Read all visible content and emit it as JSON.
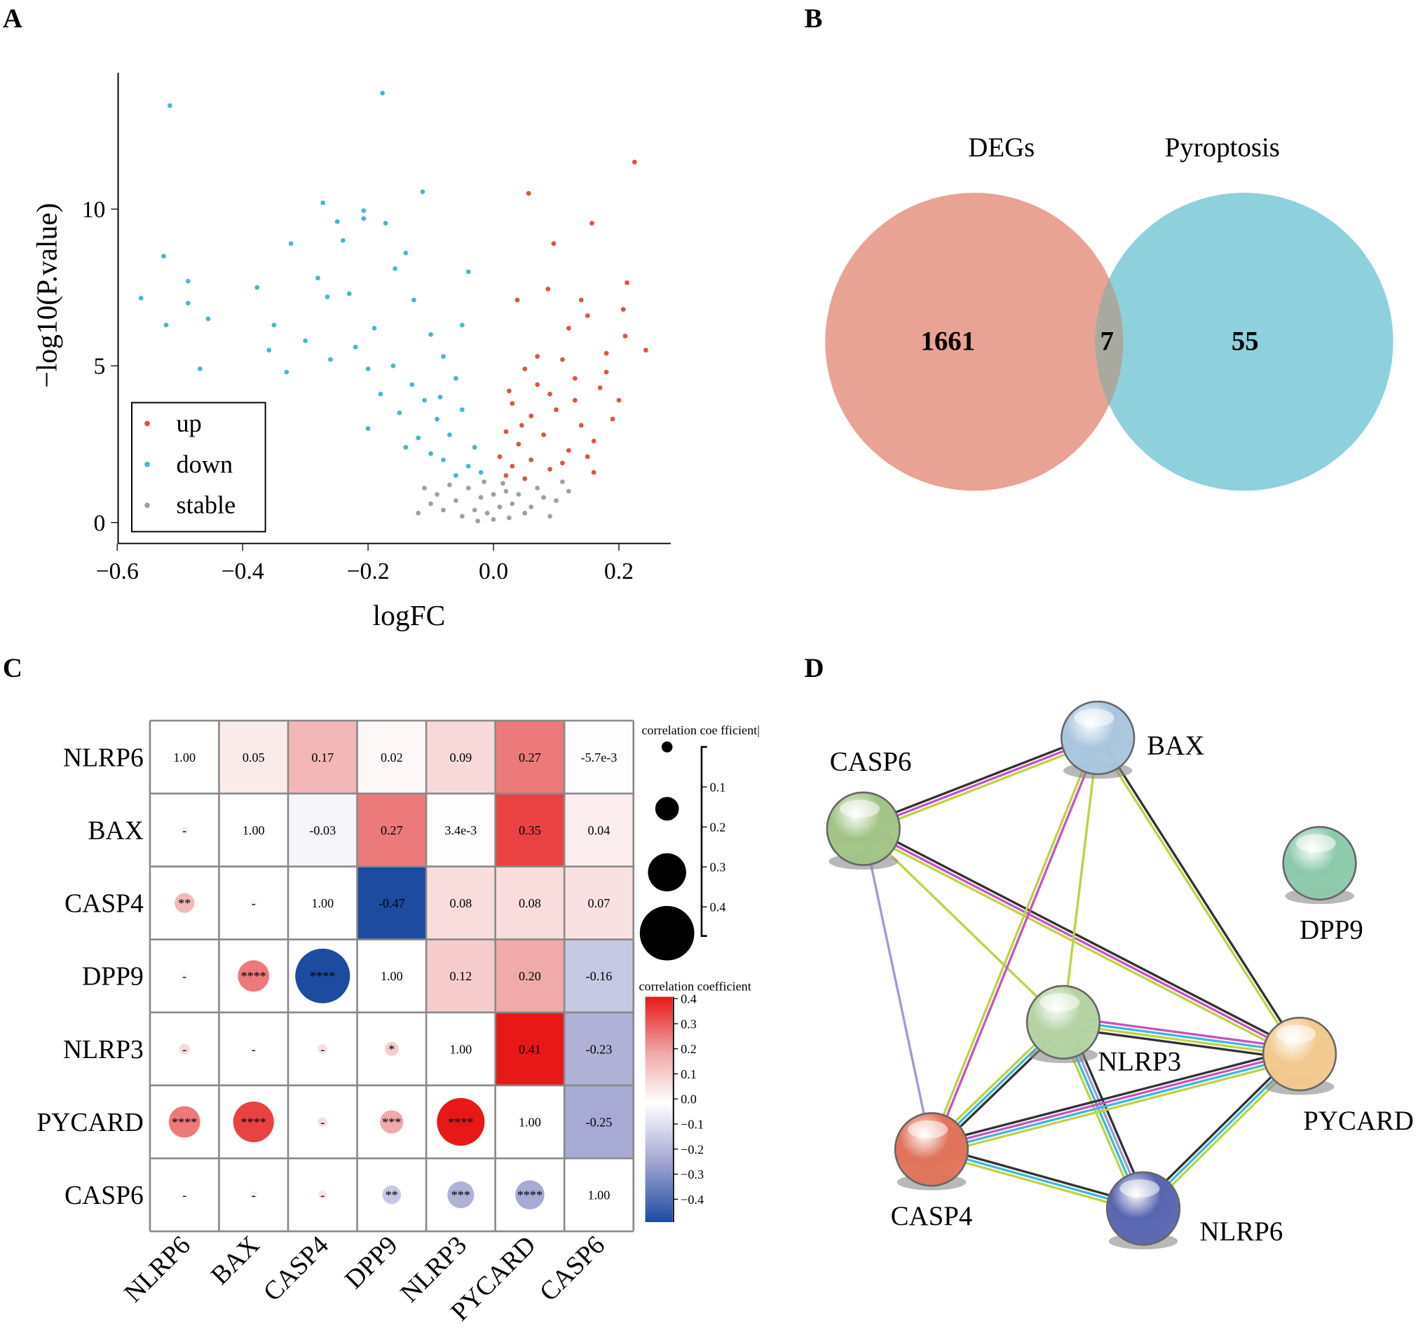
{
  "panel_labels": [
    "A",
    "B",
    "C",
    "D"
  ],
  "chart_data": [
    {
      "panel": "A",
      "type": "scatter",
      "xlabel": "logFC",
      "ylabel": "−log10(P.value)",
      "xlim": [
        -0.6,
        0.28
      ],
      "ylim": [
        0,
        14.3
      ],
      "xticks": [
        "−0.6",
        "−0.4",
        "−0.2",
        "0.0",
        "0.2"
      ],
      "xtick_values": [
        -0.6,
        -0.4,
        -0.2,
        0.0,
        0.2
      ],
      "yticks": [
        "0",
        "5",
        "10"
      ],
      "ytick_values": [
        0,
        5,
        10
      ],
      "legend": {
        "placement": "bottom-left",
        "entries": [
          "up",
          "down",
          "stable"
        ]
      },
      "colors": {
        "up": "#e0533d",
        "down": "#47b7cc",
        "stable": "#a0a0a0"
      },
      "series": [
        {
          "name": "up",
          "points": [
            [
              0.225,
              11.5
            ],
            [
              0.056,
              10.5
            ],
            [
              0.157,
              9.55
            ],
            [
              0.096,
              8.9
            ],
            [
              0.213,
              7.65
            ],
            [
              0.243,
              5.5
            ],
            [
              0.207,
              6.8
            ],
            [
              0.21,
              5.95
            ],
            [
              0.038,
              7.1
            ],
            [
              0.087,
              7.45
            ],
            [
              0.14,
              7.1
            ],
            [
              0.16,
              1.6
            ],
            [
              0.12,
              6.2
            ],
            [
              0.15,
              6.6
            ],
            [
              0.18,
              5.4
            ],
            [
              0.11,
              5.2
            ],
            [
              0.07,
              5.3
            ],
            [
              0.05,
              4.9
            ],
            [
              0.13,
              4.6
            ],
            [
              0.17,
              4.3
            ],
            [
              0.09,
              4.1
            ],
            [
              0.03,
              3.8
            ],
            [
              0.06,
              3.4
            ],
            [
              0.1,
              3.6
            ],
            [
              0.14,
              3.1
            ],
            [
              0.19,
              3.3
            ],
            [
              0.02,
              2.9
            ],
            [
              0.04,
              2.5
            ],
            [
              0.08,
              2.8
            ],
            [
              0.12,
              2.3
            ],
            [
              0.16,
              2.6
            ],
            [
              0.01,
              2.1
            ],
            [
              0.03,
              1.8
            ],
            [
              0.06,
              2.0
            ],
            [
              0.09,
              1.7
            ],
            [
              0.11,
              1.9
            ],
            [
              0.02,
              1.5
            ],
            [
              0.05,
              1.4
            ],
            [
              0.15,
              2.1
            ],
            [
              0.2,
              3.9
            ],
            [
              0.18,
              4.8
            ],
            [
              0.07,
              4.4
            ],
            [
              0.025,
              4.2
            ],
            [
              0.045,
              3.1
            ],
            [
              0.13,
              3.9
            ]
          ]
        },
        {
          "name": "down",
          "points": [
            [
              -0.516,
              13.3
            ],
            [
              -0.177,
              13.7
            ],
            [
              -0.562,
              7.16
            ],
            [
              -0.526,
              8.5
            ],
            [
              -0.487,
              7.7
            ],
            [
              -0.487,
              7.0
            ],
            [
              -0.522,
              6.3
            ],
            [
              -0.455,
              6.5
            ],
            [
              -0.468,
              4.9
            ],
            [
              -0.113,
              10.55
            ],
            [
              -0.272,
              10.2
            ],
            [
              -0.249,
              9.6
            ],
            [
              -0.207,
              9.7
            ],
            [
              -0.207,
              9.95
            ],
            [
              -0.172,
              9.55
            ],
            [
              -0.323,
              8.9
            ],
            [
              -0.24,
              9.0
            ],
            [
              -0.377,
              7.5
            ],
            [
              -0.28,
              7.8
            ],
            [
              -0.265,
              7.2
            ],
            [
              -0.23,
              7.3
            ],
            [
              -0.35,
              6.3
            ],
            [
              -0.358,
              5.5
            ],
            [
              -0.33,
              4.8
            ],
            [
              -0.04,
              8.0
            ],
            [
              -0.14,
              8.6
            ],
            [
              -0.157,
              8.1
            ],
            [
              -0.127,
              7.1
            ],
            [
              -0.2,
              3.0
            ],
            [
              -0.3,
              5.8
            ],
            [
              -0.26,
              5.2
            ],
            [
              -0.22,
              5.6
            ],
            [
              -0.19,
              6.2
            ],
            [
              -0.16,
              5.0
            ],
            [
              -0.13,
              4.4
            ],
            [
              -0.1,
              6.0
            ],
            [
              -0.08,
              5.3
            ],
            [
              -0.06,
              4.6
            ],
            [
              -0.11,
              3.9
            ],
            [
              -0.09,
              3.3
            ],
            [
              -0.07,
              2.8
            ],
            [
              -0.05,
              3.6
            ],
            [
              -0.03,
              2.4
            ],
            [
              -0.12,
              2.7
            ],
            [
              -0.15,
              3.5
            ],
            [
              -0.18,
              4.1
            ],
            [
              -0.04,
              1.8
            ],
            [
              -0.08,
              2.0
            ],
            [
              -0.02,
              1.6
            ],
            [
              -0.06,
              1.5
            ],
            [
              -0.1,
              2.2
            ],
            [
              -0.14,
              2.4
            ],
            [
              -0.05,
              6.3
            ],
            [
              -0.085,
              4.0
            ],
            [
              -0.2,
              4.9
            ]
          ]
        },
        {
          "name": "stable",
          "points": [
            [
              0.0,
              0.1
            ],
            [
              -0.01,
              0.3
            ],
            [
              0.01,
              0.5
            ],
            [
              -0.02,
              0.8
            ],
            [
              0.02,
              1.0
            ],
            [
              -0.03,
              0.4
            ],
            [
              0.03,
              0.6
            ],
            [
              -0.04,
              1.1
            ],
            [
              0.04,
              0.9
            ],
            [
              -0.05,
              0.2
            ],
            [
              0.05,
              0.3
            ],
            [
              -0.06,
              0.7
            ],
            [
              0.06,
              0.5
            ],
            [
              -0.07,
              1.2
            ],
            [
              0.07,
              1.1
            ],
            [
              -0.08,
              0.4
            ],
            [
              0.08,
              0.8
            ],
            [
              -0.09,
              0.9
            ],
            [
              0.09,
              0.2
            ],
            [
              -0.1,
              0.6
            ],
            [
              0.1,
              0.7
            ],
            [
              -0.12,
              0.3
            ],
            [
              0.12,
              1.0
            ],
            [
              -0.015,
              1.3
            ],
            [
              0.015,
              1.25
            ],
            [
              0.0,
              0.9
            ],
            [
              -0.025,
              0.05
            ],
            [
              0.025,
              0.15
            ],
            [
              0.11,
              1.3
            ],
            [
              -0.11,
              1.1
            ]
          ]
        }
      ]
    },
    {
      "panel": "B",
      "type": "venn",
      "sets": [
        {
          "name": "DEGs",
          "only": "1661",
          "color": "#e9a395"
        },
        {
          "name": "Pyroptosis",
          "only": "55",
          "color": "#8fd0dd"
        }
      ],
      "intersection": "7",
      "intersection_color": "#a8aa9f"
    },
    {
      "panel": "C",
      "type": "heatmap",
      "genes": [
        "NLRP6",
        "BAX",
        "CASP4",
        "DPP9",
        "NLRP3",
        "PYCARD",
        "CASP6"
      ],
      "matrix": [
        [
          1.0,
          0.05,
          0.17,
          0.02,
          0.09,
          0.27,
          -0.0057
        ],
        [
          0.05,
          1.0,
          -0.03,
          0.27,
          0.0034,
          0.35,
          0.04
        ],
        [
          0.17,
          -0.03,
          1.0,
          -0.47,
          0.08,
          0.08,
          0.07
        ],
        [
          0.02,
          0.27,
          -0.47,
          1.0,
          0.12,
          0.2,
          -0.16
        ],
        [
          0.09,
          0.0034,
          0.08,
          0.12,
          1.0,
          0.41,
          -0.23
        ],
        [
          0.27,
          0.35,
          0.08,
          0.2,
          0.41,
          1.0,
          -0.25
        ],
        [
          -0.0057,
          0.04,
          0.07,
          -0.16,
          -0.23,
          -0.25,
          1.0
        ]
      ],
      "value_labels": [
        [
          "1.00",
          "0.05",
          "0.17",
          "0.02",
          "0.09",
          "0.27",
          "-5.7e-3"
        ],
        [
          "",
          "1.00",
          "-0.03",
          "0.27",
          "3.4e-3",
          "0.35",
          "0.04"
        ],
        [
          "",
          "",
          "1.00",
          "-0.47",
          "0.08",
          "0.08",
          "0.07"
        ],
        [
          "",
          "",
          "",
          "1.00",
          "0.12",
          "0.20",
          "-0.16"
        ],
        [
          "",
          "",
          "",
          "",
          "1.00",
          "0.41",
          "-0.23"
        ],
        [
          "",
          "",
          "",
          "",
          "",
          "1.00",
          "-0.25"
        ],
        [
          "",
          "",
          "",
          "",
          "",
          "",
          "1.00"
        ]
      ],
      "significance": [
        [],
        [
          "-"
        ],
        [
          "**",
          "-"
        ],
        [
          "-",
          "****",
          "****"
        ],
        [
          "-",
          "-",
          "-",
          "*"
        ],
        [
          "****",
          "****",
          "-",
          "***",
          "****"
        ],
        [
          "-",
          "-",
          "-",
          "**",
          "***",
          "****"
        ]
      ],
      "size_legend": {
        "title": "correlation coe fficient|",
        "ticks": [
          "0.1",
          "0.2",
          "0.3",
          "0.4"
        ]
      },
      "color_legend": {
        "title": "correlation coefficient",
        "ticks": [
          "0.4",
          "0.3",
          "0.2",
          "0.1",
          "0.0",
          "−0.1",
          "−0.2",
          "−0.3",
          "−0.4"
        ],
        "range": [
          -0.47,
          0.41
        ],
        "colors": {
          "neg": "#1c4ba0",
          "mid": "#ffffff",
          "pos": "#e81818"
        }
      }
    }
  ],
  "network": {
    "panel": "D",
    "nodes": [
      {
        "id": "BAX",
        "color": "#a9c6df"
      },
      {
        "id": "CASP6",
        "color": "#a2c486"
      },
      {
        "id": "DPP9",
        "color": "#8cc9aa"
      },
      {
        "id": "NLRP3",
        "color": "#b4d2a2"
      },
      {
        "id": "PYCARD",
        "color": "#f2c98e"
      },
      {
        "id": "CASP4",
        "color": "#e0735a"
      },
      {
        "id": "NLRP6",
        "color": "#5866b0"
      }
    ],
    "edge_colors": {
      "k": "#333333",
      "m": "#c455c4",
      "g": "#bcd443",
      "c": "#40b8d8",
      "l": "#9c9cd6"
    },
    "edges": [
      [
        "CASP6",
        "BAX",
        "kmg"
      ],
      [
        "CASP6",
        "NLRP3",
        "g"
      ],
      [
        "CASP6",
        "PYCARD",
        "kmg"
      ],
      [
        "CASP6",
        "CASP4",
        "l"
      ],
      [
        "BAX",
        "NLRP3",
        "g"
      ],
      [
        "BAX",
        "CASP4",
        "mg"
      ],
      [
        "BAX",
        "PYCARD",
        "kg"
      ],
      [
        "NLRP3",
        "PYCARD",
        "mcgk"
      ],
      [
        "NLRP3",
        "CASP4",
        "kcg"
      ],
      [
        "NLRP3",
        "NLRP6",
        "klcg"
      ],
      [
        "CASP4",
        "PYCARD",
        "kmcg"
      ],
      [
        "CASP4",
        "NLRP6",
        "kcg"
      ],
      [
        "NLRP6",
        "PYCARD",
        "kcg"
      ]
    ]
  }
}
